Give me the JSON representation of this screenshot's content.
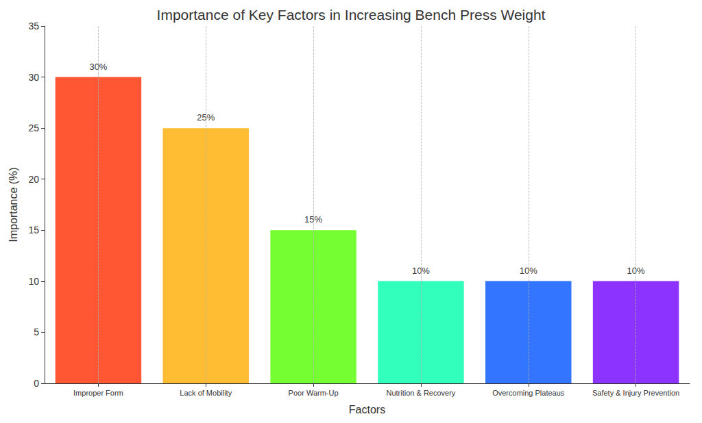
{
  "chart_data": {
    "type": "bar",
    "title": "Importance of Key Factors in Increasing Bench Press Weight",
    "x_label": "Factors",
    "y_label": "Importance (%)",
    "categories": [
      "Improper Form",
      "Lack of Mobility",
      "Poor Warm-Up",
      "Nutrition & Recovery",
      "Overcoming Plateaus",
      "Safety & Injury Prevention"
    ],
    "values": [
      30,
      25,
      15,
      10,
      10,
      10
    ],
    "value_labels": [
      "30%",
      "25%",
      "15%",
      "10%",
      "10%",
      "10%"
    ],
    "colors": [
      "#ff5733",
      "#ffbd33",
      "#75ff33",
      "#33ffbd",
      "#3375ff",
      "#8d33ff"
    ],
    "ylim": [
      0,
      35
    ],
    "yticks": [
      0,
      5,
      10,
      15,
      20,
      25,
      30,
      35
    ],
    "grid": true,
    "data_labels": true
  }
}
